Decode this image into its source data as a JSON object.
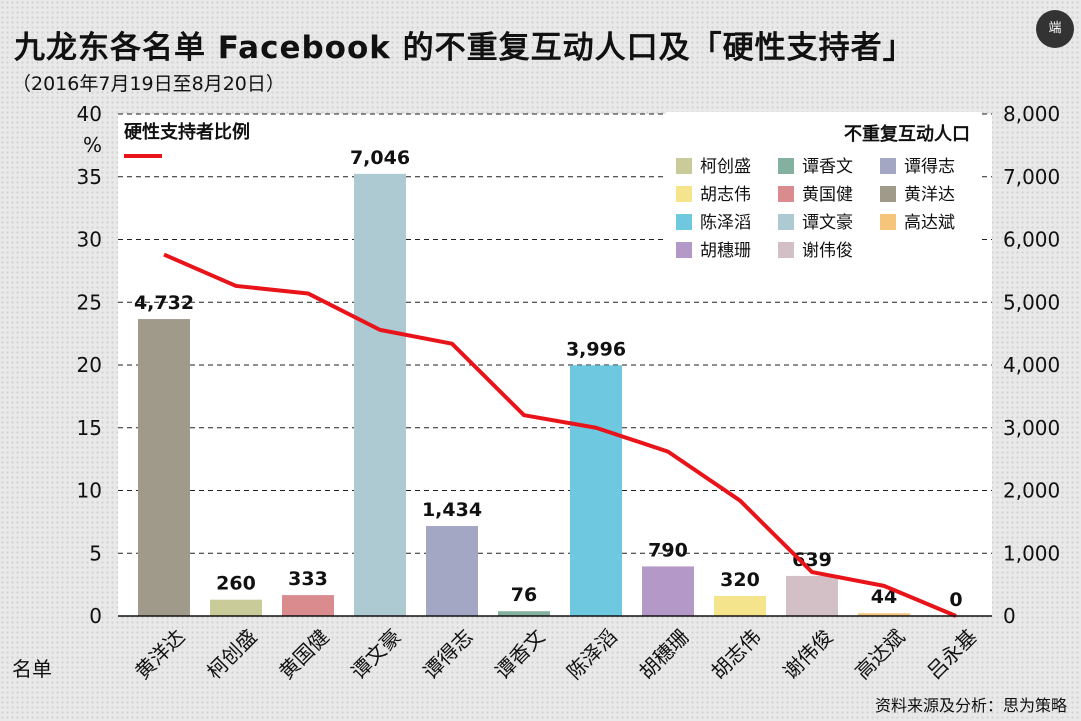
{
  "title": "九龙东各名单 Facebook 的不重复互动人口及「硬性支持者」",
  "subtitle": "（2016年7月19日至8月20日）",
  "logo_text": "端",
  "source": "资料来源及分析：思为策略",
  "chart_data": {
    "type": "bar",
    "categories": [
      "黄洋达",
      "柯创盛",
      "黄国健",
      "谭文豪",
      "谭得志",
      "谭香文",
      "陈泽滔",
      "胡穗珊",
      "胡志伟",
      "谢伟俊",
      "高达斌",
      "吕永基"
    ],
    "xlabel": "名单",
    "left_axis": {
      "label": "%",
      "ylim": [
        0,
        40
      ],
      "ticks": [
        "0",
        "5",
        "10",
        "15",
        "20",
        "25",
        "30",
        "35",
        "40"
      ]
    },
    "right_axis": {
      "ylim": [
        0,
        8000
      ],
      "ticks": [
        "0",
        "1,000",
        "2,000",
        "3,000",
        "4,000",
        "5,000",
        "6,000",
        "7,000",
        "8,000"
      ]
    },
    "bars": {
      "name": "不重复互动人口",
      "values": [
        4732,
        260,
        333,
        7046,
        1434,
        76,
        3996,
        790,
        320,
        639,
        44,
        0
      ],
      "labels": [
        "4,732",
        "260",
        "333",
        "7,046",
        "1,434",
        "76",
        "3,996",
        "790",
        "320",
        "639",
        "44",
        "0"
      ],
      "colors": [
        "#a09a8a",
        "#c9cb98",
        "#d98b8e",
        "#adc9d1",
        "#a3a7c4",
        "#84b09f",
        "#6ec9e0",
        "#b498c8",
        "#f4e58c",
        "#d3bfc6",
        "#f5c57c",
        "#cccccc"
      ]
    },
    "line": {
      "name": "硬性支持者比例",
      "color": "#e8141a",
      "values": [
        28.8,
        26.3,
        25.7,
        22.8,
        21.7,
        16.0,
        15.0,
        13.1,
        9.2,
        3.5,
        2.4,
        0.0
      ]
    },
    "legend": {
      "title": "不重复互动人口",
      "items": [
        {
          "name": "柯创盛",
          "color": "#c9cb98"
        },
        {
          "name": "谭香文",
          "color": "#84b09f"
        },
        {
          "name": "谭得志",
          "color": "#a3a7c4"
        },
        {
          "name": "胡志伟",
          "color": "#f4e58c"
        },
        {
          "name": "黄国健",
          "color": "#d98b8e"
        },
        {
          "name": "黄洋达",
          "color": "#a09a8a"
        },
        {
          "name": "陈泽滔",
          "color": "#6ec9e0"
        },
        {
          "name": "谭文豪",
          "color": "#adc9d1"
        },
        {
          "name": "高达斌",
          "color": "#f5c57c"
        },
        {
          "name": "胡穗珊",
          "color": "#b498c8"
        },
        {
          "name": "谢伟俊",
          "color": "#d3bfc6"
        }
      ]
    },
    "grid": true
  }
}
